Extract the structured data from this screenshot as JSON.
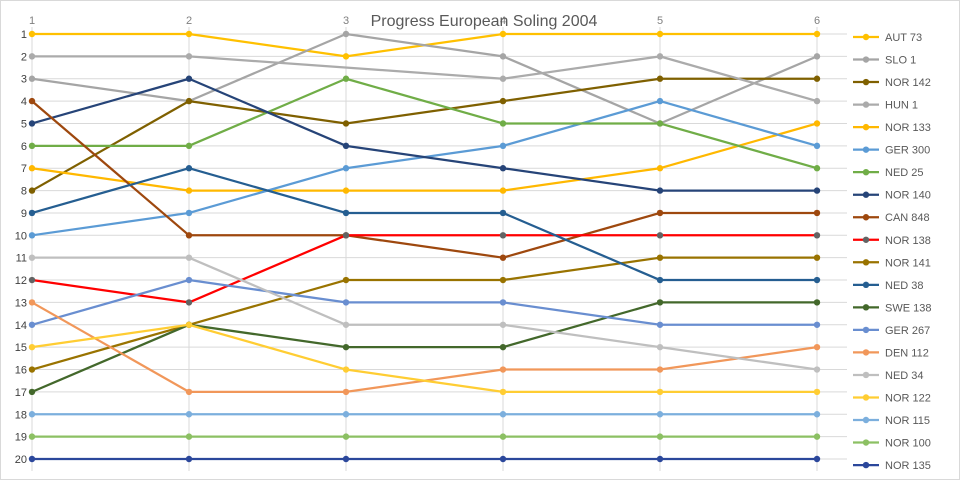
{
  "title": "Progress European Soling 2004",
  "chart_data": {
    "type": "line",
    "title": "Progress European Soling 2004",
    "x_axis": {
      "position": "top",
      "ticks": [
        "1",
        "2",
        "3",
        "4",
        "5",
        "6"
      ]
    },
    "y_axis": {
      "position": "left",
      "inverted": true,
      "ticks": [
        "1",
        "2",
        "3",
        "4",
        "5",
        "6",
        "7",
        "8",
        "9",
        "10",
        "11",
        "12",
        "13",
        "14",
        "15",
        "16",
        "17",
        "18",
        "19",
        "20"
      ],
      "range": [
        1,
        20
      ]
    },
    "grid": true,
    "legend_position": "right",
    "colors": {
      "grid": "#d9d9d9",
      "title_text": "#595959",
      "x_tick_text": "#7f7f7f",
      "y_tick_text": "#404040",
      "legend_text": "#595959"
    },
    "series": [
      {
        "name": "AUT 73",
        "color": "#FFC000",
        "values": [
          1,
          1,
          2,
          1,
          1,
          1
        ]
      },
      {
        "name": "SLO 1",
        "color": "#A5A5A5",
        "values": [
          3,
          4,
          1,
          2,
          5,
          2
        ]
      },
      {
        "name": "NOR 142",
        "color": "#7F6000",
        "values": [
          8,
          4,
          5,
          4,
          3,
          3
        ]
      },
      {
        "name": "HUN 1",
        "color": "#ABABAB",
        "values": [
          2,
          2,
          null,
          3,
          2,
          4
        ]
      },
      {
        "name": "NOR 133",
        "color": "#FFB800",
        "values": [
          7,
          8,
          8,
          8,
          7,
          5
        ]
      },
      {
        "name": "GER 300",
        "color": "#5B9BD5",
        "values": [
          10,
          9,
          7,
          6,
          4,
          6
        ]
      },
      {
        "name": "NED 25",
        "color": "#70AD47",
        "values": [
          6,
          6,
          3,
          5,
          5,
          7
        ]
      },
      {
        "name": "NOR 140",
        "color": "#264478",
        "values": [
          5,
          3,
          6,
          7,
          8,
          8
        ]
      },
      {
        "name": "CAN 848",
        "color": "#9E480E",
        "values": [
          4,
          10,
          10,
          11,
          9,
          9
        ]
      },
      {
        "name": "NOR 138",
        "color": "#FF0000",
        "marker_color": "#636363",
        "values": [
          12,
          13,
          10,
          10,
          10,
          10
        ]
      },
      {
        "name": "NOR 141",
        "color": "#997300",
        "values": [
          16,
          14,
          12,
          12,
          11,
          11
        ]
      },
      {
        "name": "NED 38",
        "color": "#255E91",
        "values": [
          9,
          7,
          9,
          9,
          12,
          12
        ]
      },
      {
        "name": "SWE 138",
        "color": "#43682B",
        "values": [
          17,
          14,
          15,
          15,
          13,
          13
        ]
      },
      {
        "name": "GER 267",
        "color": "#698ED0",
        "values": [
          14,
          12,
          13,
          13,
          14,
          14
        ]
      },
      {
        "name": "DEN 112",
        "color": "#F1975A",
        "values": [
          13,
          17,
          17,
          16,
          16,
          15
        ]
      },
      {
        "name": "NED 34",
        "color": "#BFBFBF",
        "values": [
          11,
          11,
          14,
          14,
          15,
          16
        ]
      },
      {
        "name": "NOR 122",
        "color": "#FFCD33",
        "values": [
          15,
          14,
          16,
          17,
          17,
          17
        ]
      },
      {
        "name": "NOR 115",
        "color": "#7CAFDD",
        "values": [
          18,
          18,
          18,
          18,
          18,
          18
        ]
      },
      {
        "name": "NOR 100",
        "color": "#8CC063",
        "values": [
          19,
          19,
          19,
          19,
          19,
          19
        ]
      },
      {
        "name": "NOR 135",
        "color": "#2B479B",
        "values": [
          20,
          20,
          20,
          20,
          20,
          20
        ]
      }
    ]
  }
}
